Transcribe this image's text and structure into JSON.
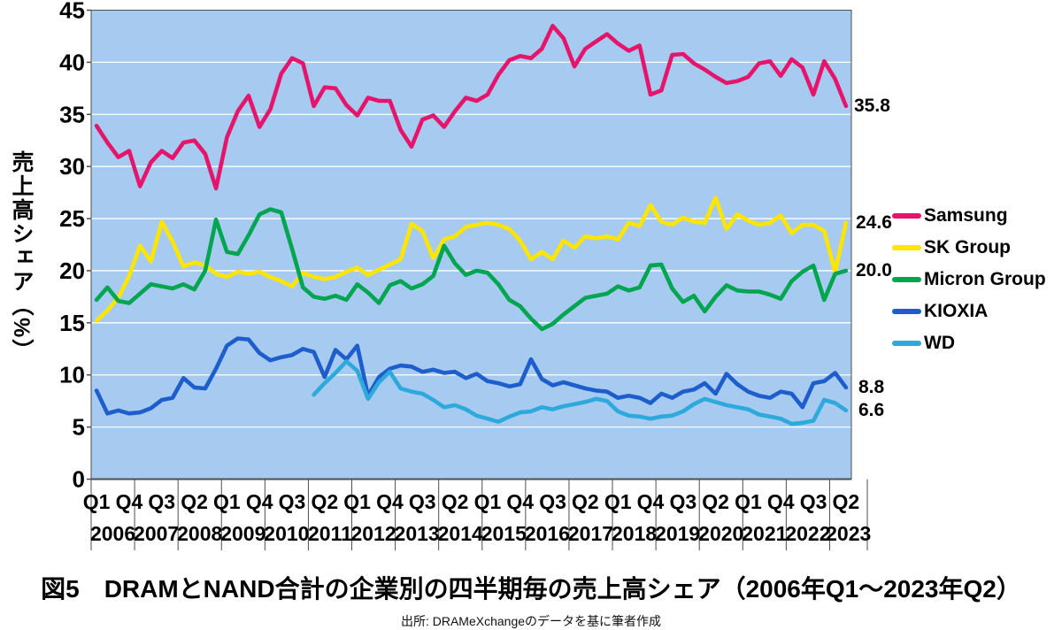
{
  "figure": {
    "title": "図5　DRAMとNAND合計の企業別の四半期毎の売上高シェア（2006年Q1～2023年Q2）",
    "source": "出所: DRAMeXchangeのデータを基に筆者作成"
  },
  "chart_data": {
    "type": "line",
    "title": "図5　DRAMとNAND合計の企業別の四半期毎の売上高シェア（2006年Q1～2023年Q2）",
    "ylabel": "売上高シェア（%）",
    "xlabel": "",
    "ylim": [
      0,
      45
    ],
    "yticks": [
      0,
      5,
      10,
      15,
      20,
      25,
      30,
      35,
      40,
      45
    ],
    "grid": true,
    "legend_position": "right",
    "plot_bg": "#A7CBF0",
    "grid_color": "#FFFFFF",
    "axis_color": "#4d4d4d",
    "n_points": 70,
    "x_start": "2006Q1",
    "x_end": "2023Q2",
    "quarter_labels": [
      "Q1",
      "Q4",
      "Q3",
      "Q2",
      "Q1",
      "Q4",
      "Q3",
      "Q2",
      "Q1",
      "Q4",
      "Q3",
      "Q2",
      "Q1",
      "Q4",
      "Q3",
      "Q2",
      "Q1",
      "Q4",
      "Q3",
      "Q2",
      "Q1",
      "Q4",
      "Q3",
      "Q2"
    ],
    "quarter_label_step": 3,
    "years": [
      "2006",
      "2007",
      "2008",
      "2009",
      "2010",
      "2011",
      "2012",
      "2013",
      "2014",
      "2015",
      "2016",
      "2017",
      "2018",
      "2019",
      "2020",
      "2021",
      "2022",
      "2023"
    ],
    "series": [
      {
        "name": "Samsung",
        "color": "#E4156B",
        "end_label": "35.8",
        "values": [
          33.9,
          32.3,
          30.9,
          31.5,
          28.1,
          30.4,
          31.5,
          30.8,
          32.3,
          32.5,
          31.2,
          27.9,
          32.8,
          35.3,
          36.8,
          33.8,
          35.5,
          38.9,
          40.4,
          39.9,
          35.8,
          37.6,
          37.5,
          35.9,
          34.9,
          36.6,
          36.3,
          36.3,
          33.5,
          31.9,
          34.5,
          34.9,
          33.8,
          35.3,
          36.6,
          36.3,
          36.9,
          38.8,
          40.2,
          40.6,
          40.4,
          41.3,
          43.5,
          42.3,
          39.6,
          41.3,
          42.0,
          42.7,
          41.8,
          41.1,
          41.6,
          36.9,
          37.3,
          40.7,
          40.8,
          39.9,
          39.3,
          38.6,
          38.0,
          38.2,
          38.6,
          39.9,
          40.1,
          38.7,
          40.3,
          39.5,
          36.9,
          40.1,
          38.4,
          35.8
        ]
      },
      {
        "name": "SK Group",
        "color": "#FFE500",
        "end_label": "24.6",
        "values": [
          15.2,
          16.2,
          17.4,
          19.5,
          22.4,
          20.9,
          24.7,
          22.8,
          20.4,
          20.8,
          20.5,
          19.7,
          19.4,
          19.9,
          19.7,
          19.9,
          19.4,
          19.0,
          18.5,
          19.8,
          19.4,
          19.2,
          19.4,
          19.9,
          20.3,
          19.6,
          20.1,
          20.6,
          21.1,
          24.5,
          23.8,
          21.2,
          23.0,
          23.3,
          24.2,
          24.4,
          24.6,
          24.4,
          24.0,
          22.9,
          21.1,
          21.8,
          21.1,
          22.9,
          22.2,
          23.3,
          23.1,
          23.3,
          23.0,
          24.6,
          24.3,
          26.3,
          24.7,
          24.4,
          25.1,
          24.7,
          24.6,
          27.0,
          24.0,
          25.4,
          24.8,
          24.4,
          24.6,
          25.3,
          23.6,
          24.4,
          24.4,
          23.8,
          19.9,
          24.6
        ]
      },
      {
        "name": "Micron Group",
        "color": "#00A550",
        "end_label": "20.0",
        "values": [
          17.2,
          18.4,
          17.1,
          16.9,
          17.8,
          18.7,
          18.5,
          18.3,
          18.7,
          18.2,
          20.0,
          24.9,
          21.8,
          21.6,
          23.4,
          25.4,
          25.9,
          25.6,
          22.1,
          18.4,
          17.5,
          17.3,
          17.6,
          17.2,
          18.7,
          17.9,
          16.9,
          18.6,
          19.0,
          18.3,
          18.7,
          19.5,
          22.4,
          20.7,
          19.6,
          20.0,
          19.8,
          18.7,
          17.2,
          16.6,
          15.4,
          14.4,
          14.9,
          15.8,
          16.6,
          17.4,
          17.6,
          17.8,
          18.5,
          18.1,
          18.4,
          20.5,
          20.6,
          18.3,
          17.0,
          17.6,
          16.1,
          17.5,
          18.6,
          18.1,
          18.0,
          18.0,
          17.7,
          17.3,
          19.0,
          19.9,
          20.5,
          17.2,
          19.7,
          20.0
        ]
      },
      {
        "name": "KIOXIA",
        "color": "#1E5ECC",
        "end_label": "8.8",
        "values": [
          8.5,
          6.3,
          6.6,
          6.3,
          6.4,
          6.8,
          7.6,
          7.8,
          9.7,
          8.8,
          8.7,
          10.6,
          12.8,
          13.5,
          13.4,
          12.1,
          11.4,
          11.7,
          11.9,
          12.5,
          12.2,
          9.8,
          12.4,
          11.5,
          12.8,
          8.0,
          9.8,
          10.6,
          10.9,
          10.8,
          10.3,
          10.5,
          10.2,
          10.3,
          9.7,
          10.1,
          9.4,
          9.2,
          8.9,
          9.1,
          11.5,
          9.6,
          9.0,
          9.3,
          9.0,
          8.7,
          8.5,
          8.4,
          7.8,
          8.0,
          7.8,
          7.3,
          8.2,
          7.8,
          8.4,
          8.6,
          9.2,
          8.2,
          10.1,
          9.1,
          8.4,
          8.0,
          7.8,
          8.4,
          8.2,
          6.9,
          9.2,
          9.4,
          10.2,
          8.8
        ]
      },
      {
        "name": "WD",
        "color": "#2EA9DC",
        "end_label": "6.6",
        "values": [
          null,
          null,
          null,
          null,
          null,
          null,
          null,
          null,
          null,
          null,
          null,
          null,
          null,
          null,
          null,
          null,
          null,
          null,
          null,
          null,
          8.1,
          9.2,
          10.2,
          11.3,
          10.4,
          7.7,
          9.3,
          10.3,
          8.7,
          8.4,
          8.2,
          7.6,
          6.9,
          7.1,
          6.7,
          6.1,
          5.8,
          5.5,
          6.0,
          6.4,
          6.5,
          6.9,
          6.7,
          7.0,
          7.2,
          7.4,
          7.7,
          7.5,
          6.5,
          6.1,
          6.0,
          5.8,
          6.0,
          6.1,
          6.5,
          7.2,
          7.7,
          7.4,
          7.1,
          6.9,
          6.7,
          6.2,
          6.0,
          5.8,
          5.3,
          5.4,
          5.6,
          7.6,
          7.3,
          6.6
        ]
      }
    ]
  }
}
